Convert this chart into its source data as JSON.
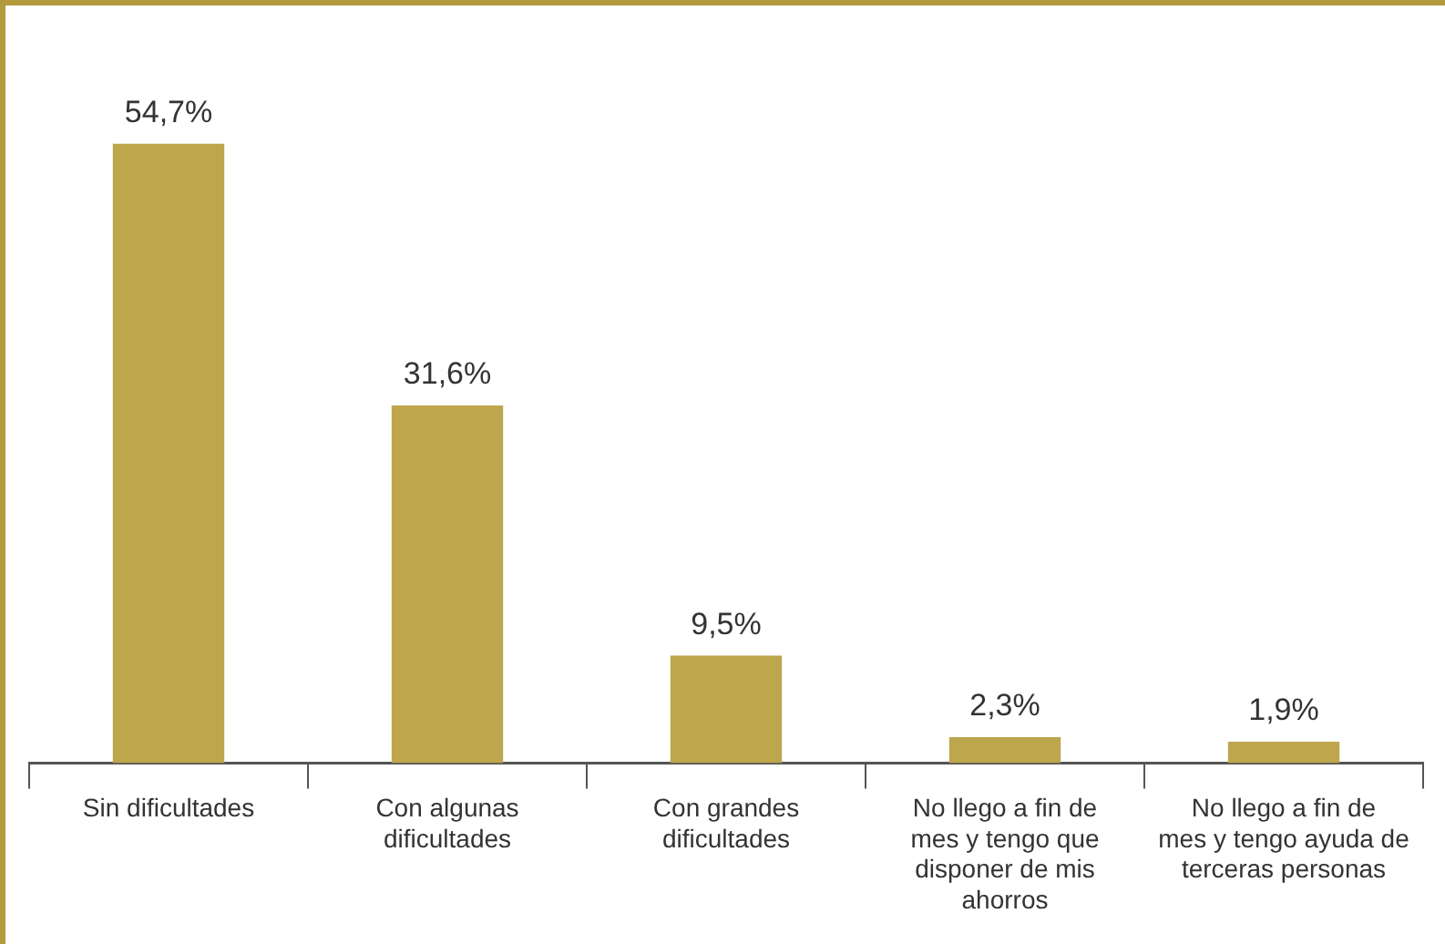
{
  "chart_data": {
    "type": "bar",
    "categories": [
      "Sin dificultades",
      "Con algunas dificultades",
      "Con grandes dificultades",
      "No llego a fin de mes y tengo que disponer de mis ahorros",
      "No llego a fin de mes y tengo ayuda de terceras personas"
    ],
    "values": [
      54.7,
      31.6,
      9.5,
      2.3,
      1.9
    ],
    "value_labels": [
      "54,7%",
      "31,6%",
      "9,5%",
      "2,3%",
      "1,9%"
    ],
    "color": "#bda64c",
    "grid": false,
    "legend": false
  }
}
